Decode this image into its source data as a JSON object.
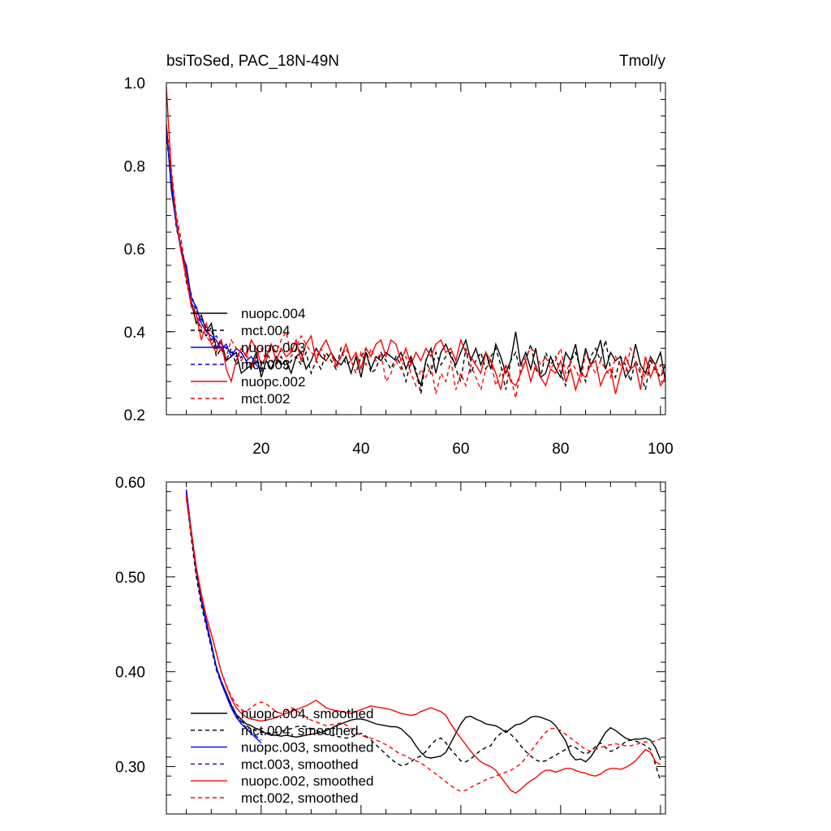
{
  "chart_data": [
    {
      "type": "line",
      "panel": "top",
      "title_left": "bsiToSed, PAC_18N-49N",
      "title_right": "Tmol/y",
      "xlabel": "",
      "ylabel": "",
      "xlim": [
        1,
        101
      ],
      "ylim": [
        0.2,
        1.0
      ],
      "x_ticks": [
        20,
        40,
        60,
        80,
        100
      ],
      "x_tick_labels": [
        "20",
        "40",
        "60",
        "80",
        "100"
      ],
      "y_ticks": [
        0.2,
        0.4,
        0.6,
        0.8,
        1.0
      ],
      "y_tick_labels": [
        "0.2",
        "0.4",
        "0.6",
        "0.8",
        "1.0"
      ],
      "legend_position": "lower-left",
      "series": [
        {
          "name": "nuopc.004",
          "color": "#000000",
          "dash": "solid",
          "x_start": 1,
          "values": [
            0.9,
            0.74,
            0.66,
            0.6,
            0.55,
            0.47,
            0.42,
            0.44,
            0.4,
            0.42,
            0.36,
            0.38,
            0.33,
            0.34,
            0.35,
            0.3,
            0.31,
            0.32,
            0.35,
            0.29,
            0.33,
            0.31,
            0.34,
            0.32,
            0.33,
            0.3,
            0.34,
            0.35,
            0.31,
            0.33,
            0.36,
            0.34,
            0.33,
            0.35,
            0.33,
            0.32,
            0.34,
            0.3,
            0.34,
            0.29,
            0.35,
            0.31,
            0.34,
            0.33,
            0.35,
            0.34,
            0.33,
            0.35,
            0.31,
            0.34,
            0.3,
            0.27,
            0.33,
            0.36,
            0.3,
            0.35,
            0.37,
            0.34,
            0.32,
            0.35,
            0.38,
            0.33,
            0.36,
            0.32,
            0.35,
            0.31,
            0.37,
            0.34,
            0.3,
            0.33,
            0.4,
            0.32,
            0.35,
            0.31,
            0.36,
            0.29,
            0.3,
            0.34,
            0.31,
            0.29,
            0.35,
            0.33,
            0.37,
            0.3,
            0.36,
            0.32,
            0.34,
            0.38,
            0.31,
            0.35,
            0.33,
            0.34,
            0.29,
            0.31,
            0.37,
            0.32,
            0.3,
            0.34,
            0.32,
            0.35,
            0.28
          ]
        },
        {
          "name": "mct.004",
          "color": "#000000",
          "dash": "dashed",
          "x_start": 1,
          "values": [
            0.89,
            0.76,
            0.65,
            0.6,
            0.52,
            0.47,
            0.44,
            0.4,
            0.39,
            0.41,
            0.34,
            0.36,
            0.33,
            0.36,
            0.32,
            0.34,
            0.33,
            0.31,
            0.34,
            0.3,
            0.35,
            0.33,
            0.32,
            0.34,
            0.31,
            0.33,
            0.34,
            0.32,
            0.35,
            0.3,
            0.33,
            0.31,
            0.35,
            0.33,
            0.31,
            0.36,
            0.32,
            0.33,
            0.3,
            0.34,
            0.36,
            0.3,
            0.31,
            0.35,
            0.33,
            0.31,
            0.34,
            0.32,
            0.28,
            0.33,
            0.31,
            0.25,
            0.33,
            0.3,
            0.35,
            0.32,
            0.34,
            0.35,
            0.31,
            0.28,
            0.36,
            0.3,
            0.33,
            0.35,
            0.31,
            0.34,
            0.36,
            0.32,
            0.26,
            0.33,
            0.35,
            0.3,
            0.33,
            0.37,
            0.31,
            0.29,
            0.35,
            0.32,
            0.34,
            0.3,
            0.27,
            0.33,
            0.35,
            0.31,
            0.28,
            0.34,
            0.36,
            0.33,
            0.38,
            0.31,
            0.29,
            0.34,
            0.32,
            0.28,
            0.33,
            0.3,
            0.26,
            0.33,
            0.31,
            0.29,
            0.32
          ]
        },
        {
          "name": "nuopc.003",
          "color": "#0000ff",
          "dash": "solid",
          "x_start": 1,
          "values": [
            0.89,
            0.75,
            0.66,
            0.59,
            0.56,
            0.48,
            0.46,
            0.42,
            0.4,
            0.39,
            0.38,
            0.36,
            0.37,
            0.34,
            0.36,
            0.35,
            0.33,
            0.34,
            0.32,
            0.31
          ]
        },
        {
          "name": "mct.003",
          "color": "#0000ff",
          "dash": "dashed",
          "x_start": 1,
          "values": [
            0.88,
            0.76,
            0.67,
            0.6,
            0.53,
            0.49,
            0.45,
            0.43,
            0.41,
            0.38,
            0.39,
            0.37,
            0.36,
            0.35,
            0.34,
            0.35,
            0.33,
            0.32,
            0.33,
            0.3
          ]
        },
        {
          "name": "nuopc.002",
          "color": "#ff0000",
          "dash": "solid",
          "x_start": 1,
          "values": [
            0.99,
            0.78,
            0.67,
            0.59,
            0.53,
            0.46,
            0.44,
            0.38,
            0.42,
            0.37,
            0.35,
            0.38,
            0.31,
            0.28,
            0.33,
            0.36,
            0.34,
            0.38,
            0.36,
            0.32,
            0.34,
            0.37,
            0.33,
            0.36,
            0.34,
            0.35,
            0.38,
            0.33,
            0.37,
            0.39,
            0.33,
            0.36,
            0.38,
            0.35,
            0.32,
            0.34,
            0.37,
            0.33,
            0.35,
            0.31,
            0.36,
            0.34,
            0.37,
            0.38,
            0.34,
            0.38,
            0.37,
            0.33,
            0.36,
            0.32,
            0.35,
            0.33,
            0.36,
            0.34,
            0.37,
            0.38,
            0.35,
            0.36,
            0.33,
            0.38,
            0.35,
            0.34,
            0.32,
            0.3,
            0.35,
            0.33,
            0.3,
            0.26,
            0.32,
            0.28,
            0.27,
            0.3,
            0.33,
            0.28,
            0.32,
            0.29,
            0.27,
            0.31,
            0.3,
            0.33,
            0.28,
            0.31,
            0.26,
            0.3,
            0.29,
            0.32,
            0.33,
            0.27,
            0.3,
            0.31,
            0.25,
            0.3,
            0.34,
            0.31,
            0.32,
            0.26,
            0.34,
            0.29,
            0.32,
            0.27,
            0.29
          ]
        },
        {
          "name": "mct.002",
          "color": "#ff0000",
          "dash": "dashed",
          "x_start": 1,
          "values": [
            0.9,
            0.79,
            0.68,
            0.62,
            0.54,
            0.47,
            0.45,
            0.41,
            0.39,
            0.37,
            0.38,
            0.35,
            0.34,
            0.38,
            0.36,
            0.33,
            0.35,
            0.31,
            0.34,
            0.36,
            0.33,
            0.37,
            0.35,
            0.38,
            0.4,
            0.34,
            0.36,
            0.39,
            0.37,
            0.35,
            0.34,
            0.36,
            0.33,
            0.35,
            0.31,
            0.34,
            0.36,
            0.33,
            0.3,
            0.35,
            0.32,
            0.36,
            0.33,
            0.35,
            0.28,
            0.3,
            0.33,
            0.31,
            0.34,
            0.3,
            0.27,
            0.31,
            0.29,
            0.32,
            0.25,
            0.3,
            0.28,
            0.33,
            0.26,
            0.3,
            0.27,
            0.32,
            0.29,
            0.26,
            0.31,
            0.33,
            0.27,
            0.3,
            0.32,
            0.29,
            0.24,
            0.31,
            0.34,
            0.36,
            0.35,
            0.32,
            0.34,
            0.31,
            0.33,
            0.36,
            0.3,
            0.33,
            0.31,
            0.28,
            0.35,
            0.32,
            0.3,
            0.33,
            0.31,
            0.29,
            0.34,
            0.32,
            0.3,
            0.36,
            0.33,
            0.31,
            0.29,
            0.34,
            0.3,
            0.32,
            0.28
          ]
        }
      ]
    },
    {
      "type": "line",
      "panel": "bottom",
      "title_left": "",
      "title_right": "",
      "xlabel": "",
      "ylabel": "",
      "xlim": [
        1,
        101
      ],
      "ylim": [
        0.25,
        0.6
      ],
      "x_ticks": [
        20,
        40,
        60,
        80,
        100
      ],
      "x_tick_labels": [],
      "y_ticks": [
        0.3,
        0.4,
        0.5,
        0.6
      ],
      "y_tick_labels": [
        "0.30",
        "0.40",
        "0.50",
        "0.60"
      ],
      "legend_position": "lower-left",
      "series": [
        {
          "name": "nuopc.004, smoothed",
          "color": "#000000",
          "dash": "solid",
          "x_start": 5,
          "values": [
            0.59,
            0.545,
            0.505,
            0.475,
            0.453,
            0.43,
            0.405,
            0.39,
            0.378,
            0.365,
            0.355,
            0.35,
            0.345,
            0.343,
            0.34,
            0.338,
            0.335,
            0.333,
            0.333,
            0.332,
            0.333,
            0.332,
            0.331,
            0.332,
            0.333,
            0.334,
            0.335,
            0.336,
            0.338,
            0.34,
            0.343,
            0.345,
            0.347,
            0.349,
            0.35,
            0.35,
            0.349,
            0.347,
            0.345,
            0.344,
            0.343,
            0.342,
            0.342,
            0.34,
            0.335,
            0.33,
            0.322,
            0.315,
            0.31,
            0.309,
            0.31,
            0.311,
            0.315,
            0.325,
            0.335,
            0.345,
            0.352,
            0.353,
            0.35,
            0.348,
            0.345,
            0.344,
            0.343,
            0.34,
            0.336,
            0.34,
            0.344,
            0.345,
            0.348,
            0.352,
            0.353,
            0.352,
            0.35,
            0.348,
            0.343,
            0.335,
            0.327,
            0.313,
            0.307,
            0.308,
            0.305,
            0.31,
            0.318,
            0.327,
            0.336,
            0.341,
            0.338,
            0.334,
            0.33,
            0.328,
            0.329,
            0.329,
            0.33,
            0.328,
            0.32,
            0.307
          ]
        },
        {
          "name": "mct.004, smoothed",
          "color": "#000000",
          "dash": "dashed",
          "x_start": 5,
          "values": [
            0.585,
            0.54,
            0.5,
            0.47,
            0.448,
            0.425,
            0.402,
            0.388,
            0.375,
            0.362,
            0.353,
            0.348,
            0.343,
            0.34,
            0.338,
            0.336,
            0.336,
            0.335,
            0.336,
            0.337,
            0.339,
            0.34,
            0.342,
            0.343,
            0.342,
            0.34,
            0.338,
            0.336,
            0.334,
            0.333,
            0.332,
            0.331,
            0.33,
            0.331,
            0.333,
            0.335,
            0.332,
            0.328,
            0.323,
            0.318,
            0.313,
            0.308,
            0.304,
            0.301,
            0.302,
            0.305,
            0.309,
            0.311,
            0.316,
            0.323,
            0.328,
            0.33,
            0.325,
            0.318,
            0.312,
            0.306,
            0.305,
            0.308,
            0.313,
            0.317,
            0.32,
            0.322,
            0.33,
            0.335,
            0.338,
            0.334,
            0.329,
            0.322,
            0.316,
            0.311,
            0.307,
            0.305,
            0.306,
            0.309,
            0.312,
            0.315,
            0.318,
            0.322,
            0.32,
            0.316,
            0.313,
            0.316,
            0.321,
            0.325,
            0.32,
            0.316,
            0.318,
            0.322,
            0.326,
            0.328,
            0.327,
            0.325,
            0.322,
            0.318,
            0.302,
            0.285
          ]
        },
        {
          "name": "nuopc.003, smoothed",
          "color": "#0000ff",
          "dash": "solid",
          "x_start": 5,
          "values": [
            0.592,
            0.548,
            0.508,
            0.476,
            0.452,
            0.428,
            0.405,
            0.388,
            0.375,
            0.362,
            0.352,
            0.345,
            0.34,
            0.335,
            0.33,
            0.325
          ]
        },
        {
          "name": "mct.003, smoothed",
          "color": "#0000ff",
          "dash": "dashed",
          "x_start": 5,
          "values": [
            0.588,
            0.545,
            0.506,
            0.475,
            0.45,
            0.428,
            0.406,
            0.39,
            0.377,
            0.366,
            0.355,
            0.347,
            0.341,
            0.336,
            0.332,
            0.328
          ]
        },
        {
          "name": "nuopc.002, smoothed",
          "color": "#ff0000",
          "dash": "solid",
          "x_start": 5,
          "values": [
            0.585,
            0.548,
            0.51,
            0.482,
            0.458,
            0.44,
            0.42,
            0.4,
            0.385,
            0.372,
            0.362,
            0.356,
            0.352,
            0.35,
            0.349,
            0.348,
            0.349,
            0.35,
            0.352,
            0.354,
            0.356,
            0.358,
            0.36,
            0.362,
            0.364,
            0.367,
            0.37,
            0.366,
            0.362,
            0.36,
            0.359,
            0.358,
            0.357,
            0.356,
            0.358,
            0.36,
            0.362,
            0.364,
            0.363,
            0.362,
            0.361,
            0.36,
            0.358,
            0.356,
            0.355,
            0.354,
            0.355,
            0.358,
            0.36,
            0.362,
            0.36,
            0.358,
            0.354,
            0.345,
            0.337,
            0.33,
            0.323,
            0.316,
            0.31,
            0.305,
            0.302,
            0.3,
            0.296,
            0.289,
            0.282,
            0.275,
            0.272,
            0.276,
            0.281,
            0.285,
            0.288,
            0.293,
            0.296,
            0.296,
            0.294,
            0.296,
            0.298,
            0.298,
            0.296,
            0.294,
            0.293,
            0.291,
            0.29,
            0.292,
            0.296,
            0.298,
            0.298,
            0.297,
            0.299,
            0.302,
            0.306,
            0.312,
            0.318,
            0.315,
            0.305,
            0.302
          ]
        },
        {
          "name": "mct.002, smoothed",
          "color": "#ff0000",
          "dash": "dashed",
          "x_start": 5,
          "values": [
            0.582,
            0.544,
            0.508,
            0.48,
            0.458,
            0.44,
            0.42,
            0.4,
            0.386,
            0.374,
            0.366,
            0.36,
            0.358,
            0.362,
            0.366,
            0.368,
            0.366,
            0.362,
            0.358,
            0.356,
            0.358,
            0.362,
            0.36,
            0.355,
            0.352,
            0.349,
            0.347,
            0.345,
            0.343,
            0.344,
            0.345,
            0.346,
            0.344,
            0.34,
            0.336,
            0.333,
            0.331,
            0.33,
            0.328,
            0.326,
            0.323,
            0.32,
            0.316,
            0.313,
            0.311,
            0.308,
            0.306,
            0.304,
            0.3,
            0.296,
            0.292,
            0.288,
            0.284,
            0.28,
            0.276,
            0.274,
            0.275,
            0.278,
            0.281,
            0.283,
            0.286,
            0.288,
            0.29,
            0.292,
            0.294,
            0.296,
            0.299,
            0.303,
            0.309,
            0.316,
            0.323,
            0.33,
            0.336,
            0.34,
            0.34,
            0.338,
            0.334,
            0.33,
            0.326,
            0.322,
            0.318,
            0.316,
            0.318,
            0.32,
            0.322,
            0.323,
            0.324,
            0.323,
            0.322,
            0.322,
            0.323,
            0.325,
            0.326,
            0.326,
            0.327,
            0.329
          ]
        }
      ]
    }
  ]
}
